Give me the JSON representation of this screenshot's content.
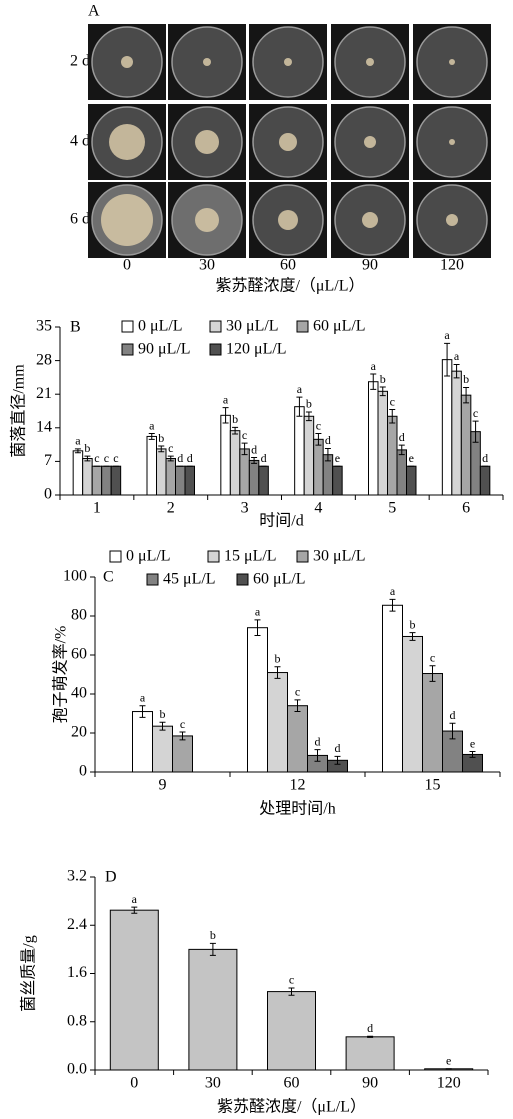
{
  "panel_a": {
    "label": "A",
    "rows": [
      "2 d",
      "4 d",
      "6 d"
    ],
    "columns": [
      "0",
      "30",
      "60",
      "90",
      "120"
    ],
    "xlabel": "紫苏醛浓度/（μL/L）"
  },
  "chart_data": [
    {
      "type": "bar",
      "title": "B",
      "xlabel": "时间/d",
      "ylabel": "菌落直径/mm",
      "categories": [
        "1",
        "2",
        "3",
        "4",
        "5",
        "6"
      ],
      "series": [
        {
          "name": "0 μL/L",
          "color": "#ffffff",
          "values": [
            9.2,
            12.2,
            16.6,
            18.4,
            23.6,
            28.2
          ],
          "errors": [
            0.4,
            0.6,
            1.6,
            2,
            1.6,
            3.4
          ],
          "labels": [
            "a",
            "a",
            "a",
            "a",
            "a",
            "a"
          ]
        },
        {
          "name": "30 μL/L",
          "color": "#d4d4d4",
          "values": [
            7.6,
            9.6,
            13.4,
            16.4,
            21.6,
            25.8
          ],
          "errors": [
            0.5,
            0.6,
            0.7,
            0.9,
            0.9,
            1.4
          ],
          "labels": [
            "b",
            "b",
            "b",
            "b",
            "b",
            "a"
          ]
        },
        {
          "name": "60 μL/L",
          "color": "#a6a6a6",
          "values": [
            6,
            7.6,
            9.6,
            11.6,
            16.4,
            20.8
          ],
          "errors": [
            0,
            0.5,
            1.2,
            1.2,
            1.4,
            1.6
          ],
          "labels": [
            "c",
            "c",
            "c",
            "c",
            "c",
            "b"
          ]
        },
        {
          "name": "90 μL/L",
          "color": "#828282",
          "values": [
            6,
            6,
            7.2,
            8.4,
            9.4,
            13.2
          ],
          "errors": [
            0,
            0,
            0.6,
            1.3,
            1,
            2.2
          ],
          "labels": [
            "c",
            "d",
            "d",
            "d",
            "d",
            "c"
          ]
        },
        {
          "name": "120 μL/L",
          "color": "#505050",
          "values": [
            6,
            6,
            6,
            6,
            6,
            6
          ],
          "errors": [
            0,
            0,
            0,
            0,
            0,
            0
          ],
          "labels": [
            "c",
            "d",
            "d",
            "e",
            "e",
            "d"
          ]
        }
      ],
      "ylim": [
        0,
        35
      ],
      "yticks": [
        0,
        7,
        14,
        21,
        28,
        35
      ],
      "legend": "top"
    },
    {
      "type": "bar",
      "title": "C",
      "xlabel": "处理时间/h",
      "ylabel": "孢子萌发率/%",
      "categories": [
        "9",
        "12",
        "15"
      ],
      "series": [
        {
          "name": "0 μL/L",
          "color": "#ffffff",
          "values": [
            31,
            74,
            85.5
          ],
          "errors": [
            3,
            4,
            3
          ],
          "labels": [
            "a",
            "a",
            "a"
          ]
        },
        {
          "name": "15 μL/L",
          "color": "#d4d4d4",
          "values": [
            23.5,
            51,
            69.5
          ],
          "errors": [
            2,
            3,
            2
          ],
          "labels": [
            "b",
            "b",
            "b"
          ]
        },
        {
          "name": "30 μL/L",
          "color": "#a6a6a6",
          "values": [
            18.5,
            34,
            50.5
          ],
          "errors": [
            2,
            3,
            4
          ],
          "labels": [
            "c",
            "c",
            "c"
          ]
        },
        {
          "name": "45 μL/L",
          "color": "#828282",
          "values": [
            null,
            8.5,
            21
          ],
          "errors": [
            null,
            3,
            4
          ],
          "labels": [
            null,
            "d",
            "d"
          ]
        },
        {
          "name": "60 μL/L",
          "color": "#505050",
          "values": [
            null,
            6,
            9
          ],
          "errors": [
            null,
            2,
            1.5
          ],
          "labels": [
            null,
            "d",
            "e"
          ]
        }
      ],
      "ylim": [
        0,
        100
      ],
      "yticks": [
        0,
        20,
        40,
        60,
        80,
        100
      ],
      "legend": "top"
    },
    {
      "type": "bar",
      "title": "D",
      "xlabel": "紫苏醛浓度/（μL/L）",
      "ylabel": "菌丝质量/g",
      "categories": [
        "0",
        "30",
        "60",
        "90",
        "120"
      ],
      "color": "#c4c4c4",
      "values": [
        2.65,
        2.0,
        1.3,
        0.55,
        0.02
      ],
      "errors": [
        0.05,
        0.1,
        0.06,
        0.01,
        0
      ],
      "labels": [
        "a",
        "b",
        "c",
        "d",
        "e"
      ],
      "ylim": [
        0,
        3.2
      ],
      "yticks": [
        {
          "value": 0,
          "label": "0.0"
        },
        0.8,
        1.6,
        2.4,
        3.2
      ]
    }
  ]
}
